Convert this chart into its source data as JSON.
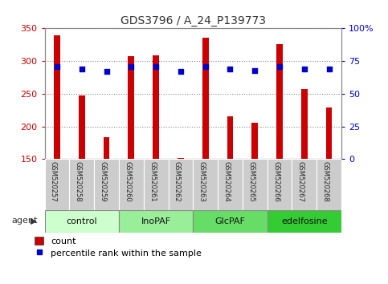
{
  "title": "GDS3796 / A_24_P139773",
  "samples": [
    "GSM520257",
    "GSM520258",
    "GSM520259",
    "GSM520260",
    "GSM520261",
    "GSM520262",
    "GSM520263",
    "GSM520264",
    "GSM520265",
    "GSM520266",
    "GSM520267",
    "GSM520268"
  ],
  "bar_values": [
    340,
    247,
    183,
    307,
    309,
    152,
    336,
    216,
    205,
    326,
    257,
    229
  ],
  "percentile_values": [
    71,
    69,
    67,
    71,
    71,
    67,
    71,
    69,
    68,
    71,
    69,
    69
  ],
  "bar_color": "#cc0000",
  "dot_color": "#0000cc",
  "ylim_left": [
    150,
    350
  ],
  "ylim_right": [
    0,
    100
  ],
  "yticks_left": [
    150,
    200,
    250,
    300,
    350
  ],
  "yticks_right": [
    0,
    25,
    50,
    75,
    100
  ],
  "ytick_labels_right": [
    "0",
    "25",
    "50",
    "75",
    "100%"
  ],
  "groups": [
    {
      "label": "control",
      "start": 0,
      "end": 3,
      "color": "#ccffcc"
    },
    {
      "label": "InoPAF",
      "start": 3,
      "end": 6,
      "color": "#99ee99"
    },
    {
      "label": "GlcPAF",
      "start": 6,
      "end": 9,
      "color": "#66dd66"
    },
    {
      "label": "edelfosine",
      "start": 9,
      "end": 12,
      "color": "#33cc33"
    }
  ],
  "agent_label": "agent",
  "legend_bar_label": "count",
  "legend_dot_label": "percentile rank within the sample",
  "grid_color": "#888888",
  "left_tick_color": "#cc0000",
  "right_tick_color": "#0000cc",
  "sample_bg_color": "#cccccc",
  "title_fontsize": 10,
  "bar_width": 0.25
}
